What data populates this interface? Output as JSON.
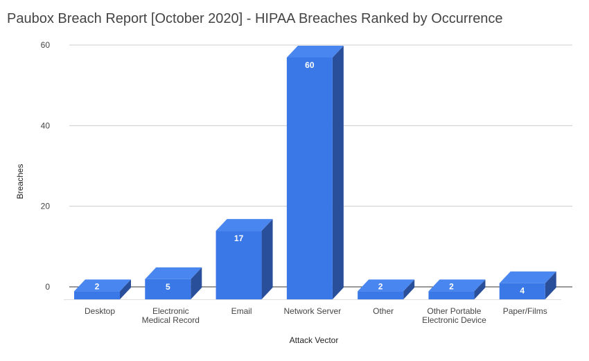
{
  "chart_data": {
    "type": "bar",
    "title": "Paubox Breach Report [October 2020] - HIPAA Breaches Ranked by Occurrence",
    "xlabel": "Attack Vector",
    "ylabel": "Breaches",
    "categories": [
      [
        "Desktop"
      ],
      [
        "Electronic",
        "Medical Record"
      ],
      [
        "Email"
      ],
      [
        "Network Server"
      ],
      [
        "Other"
      ],
      [
        "Other Portable",
        "Electronic Device"
      ],
      [
        "Paper/Films"
      ]
    ],
    "values": [
      2,
      5,
      17,
      60,
      2,
      2,
      4
    ],
    "yticks": [
      0,
      20,
      40,
      60
    ],
    "ylim": [
      0,
      60
    ],
    "grid": true,
    "style": "3d",
    "colors": {
      "front": "#3b78e7",
      "side": "#2a4f9a",
      "top": "#4a86ef"
    }
  }
}
